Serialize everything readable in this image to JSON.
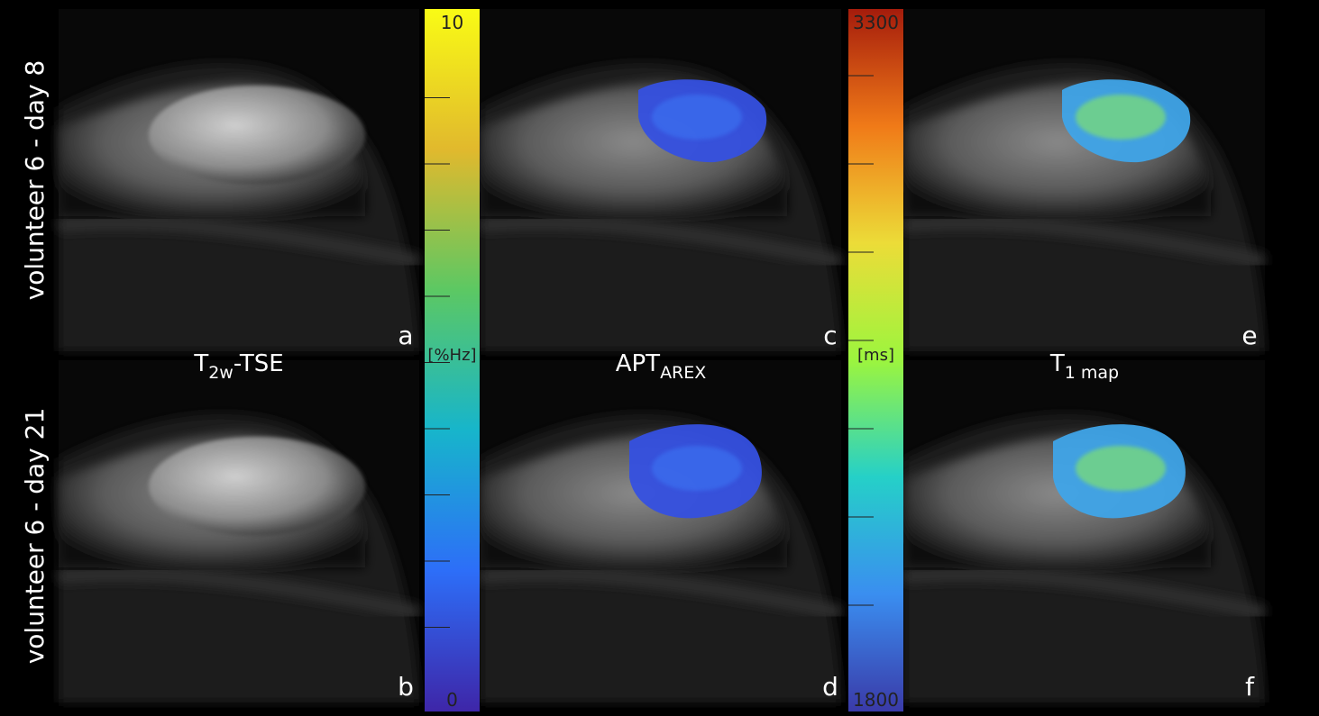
{
  "figure": {
    "row_labels": [
      "volunteer 6 - day 8",
      "volunteer 6 - day 21"
    ],
    "columns": [
      {
        "title": {
          "main": "T",
          "sub": "2w",
          "rest": "-TSE"
        },
        "panel_labels": [
          "a",
          "b"
        ]
      },
      {
        "title": {
          "main": "APT",
          "sub": "AREX"
        },
        "panel_labels": [
          "c",
          "d"
        ]
      },
      {
        "title": {
          "main": "T",
          "sub": "1 map"
        },
        "panel_labels": [
          "e",
          "f"
        ]
      }
    ],
    "colorbars": [
      {
        "unit": "[%Hz]",
        "lim": [
          0,
          10
        ],
        "ticks": [
          0,
          10
        ],
        "minor_ticks": [
          1,
          2,
          3,
          4,
          5,
          6,
          7,
          8,
          9
        ],
        "colors": [
          "#3e26a8",
          "#2d6ef8",
          "#17b5cb",
          "#5cc863",
          "#e1b92d",
          "#f9fb15"
        ]
      },
      {
        "unit": "[ms]",
        "lim": [
          1800,
          3300
        ],
        "ticks": [
          1800,
          3300
        ],
        "minor_ticks": [
          2000,
          2200,
          2400,
          2600,
          2800,
          3000,
          3200
        ],
        "colors": [
          "#3a3aa8",
          "#3a8ef0",
          "#25d0c8",
          "#9cf53e",
          "#ecdc38",
          "#f07a18",
          "#a51c0c"
        ]
      }
    ]
  }
}
